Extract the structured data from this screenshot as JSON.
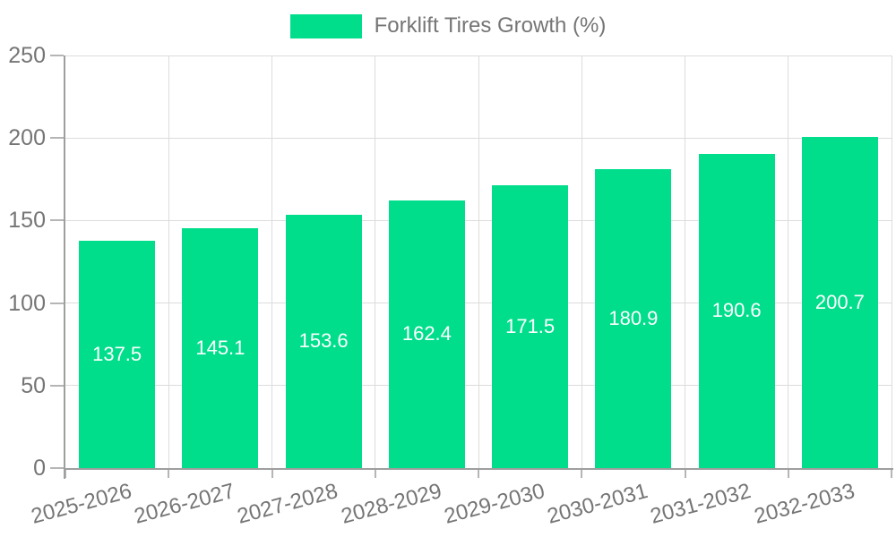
{
  "legend": {
    "series_label": "Forklift Tires Growth (%)"
  },
  "chart_data": {
    "type": "bar",
    "title": "Forklift Tires Growth (%)",
    "categories": [
      "2025-2026",
      "2026-2027",
      "2027-2028",
      "2028-2029",
      "2029-2030",
      "2030-2031",
      "2031-2032",
      "2032-2033"
    ],
    "series": [
      {
        "name": "Forklift Tires Growth (%)",
        "values": [
          137.5,
          145.1,
          153.6,
          162.4,
          171.5,
          180.9,
          190.6,
          200.7
        ]
      }
    ],
    "value_labels": [
      "137.5",
      "145.1",
      "153.6",
      "162.4",
      "171.5",
      "180.9",
      "190.6",
      "200.7"
    ],
    "xlabel": "",
    "ylabel": "",
    "ylim": [
      0,
      250
    ],
    "yticks": [
      0,
      50,
      100,
      150,
      200,
      250
    ],
    "ytick_labels": [
      "0",
      "50",
      "100",
      "150",
      "200",
      "250"
    ],
    "grid": true,
    "legend_position": "top",
    "colors": {
      "bar": "#00DE8C",
      "value_label": "#FFFFFF",
      "axis": "#9E9E9E",
      "tick": "#B5B5B5",
      "gridline": "#DCDCDC",
      "label_text": "#757575",
      "background": "#FFFFFF"
    }
  }
}
